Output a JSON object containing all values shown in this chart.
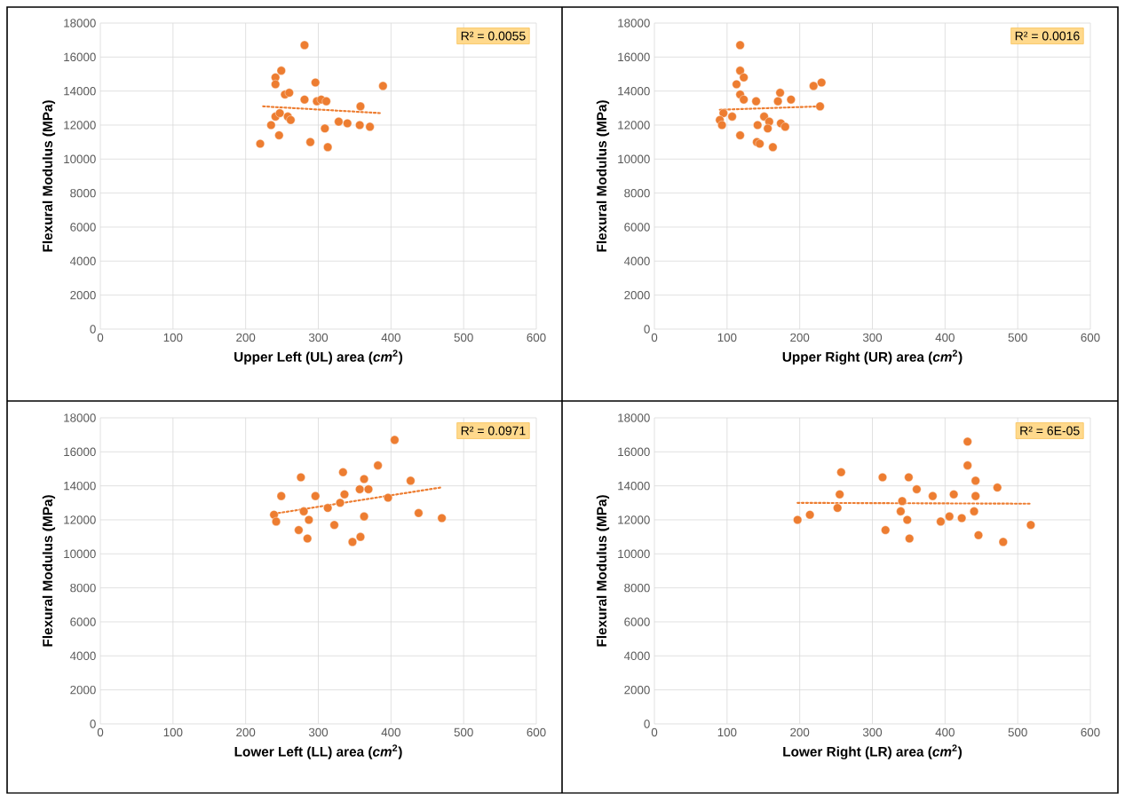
{
  "chart_data": [
    {
      "type": "scatter",
      "xlabel": "Upper Left (UL) area (*cm*$^{2}$)",
      "ylabel": "Flexural Modulus (MPa)",
      "xlim": [
        0,
        600
      ],
      "ylim": [
        0,
        18000
      ],
      "xticks": [
        0,
        100,
        200,
        300,
        400,
        500,
        600
      ],
      "yticks": [
        0,
        2000,
        4000,
        6000,
        8000,
        10000,
        12000,
        14000,
        16000,
        18000
      ],
      "grid": true,
      "annotations": [
        "R² = 0.0055"
      ],
      "series": [
        {
          "type": "scatter",
          "marker": "circle",
          "color": "#ed7d31",
          "x": [
            281,
            249,
            241,
            241,
            296,
            389,
            254,
            260,
            281,
            298,
            304,
            311,
            358,
            241,
            247,
            258,
            262,
            235,
            328,
            340,
            357,
            371,
            309,
            246,
            220,
            289,
            313
          ],
          "values": [
            16700,
            15200,
            14800,
            14400,
            14500,
            14300,
            13800,
            13900,
            13500,
            13400,
            13500,
            13400,
            13100,
            12500,
            12700,
            12500,
            12300,
            12000,
            12200,
            12100,
            12000,
            11900,
            11800,
            11400,
            10900,
            11000,
            10700
          ]
        },
        {
          "type": "line",
          "line_style": "dotted",
          "color": "#ed7d31",
          "x": [
            224,
            387
          ],
          "values": [
            13100,
            12700
          ]
        }
      ]
    },
    {
      "type": "scatter",
      "xlabel": "Upper Right (UR) area (*cm*$^{2}$)",
      "ylabel": "Flexural Modulus (MPa)",
      "xlim": [
        0,
        600
      ],
      "ylim": [
        0,
        18000
      ],
      "xticks": [
        0,
        100,
        200,
        300,
        400,
        500,
        600
      ],
      "yticks": [
        0,
        2000,
        4000,
        6000,
        8000,
        10000,
        12000,
        14000,
        16000,
        18000
      ],
      "grid": true,
      "annotations": [
        "R² = 0.0016"
      ],
      "series": [
        {
          "type": "scatter",
          "marker": "circle",
          "color": "#ed7d31",
          "x": [
            118,
            118,
            123,
            113,
            219,
            230,
            118,
            123,
            140,
            173,
            170,
            188,
            228,
            95,
            90,
            93,
            107,
            151,
            158,
            142,
            174,
            180,
            156,
            118,
            141,
            145,
            163
          ],
          "values": [
            16700,
            15200,
            14800,
            14400,
            14300,
            14500,
            13800,
            13500,
            13400,
            13900,
            13400,
            13500,
            13100,
            12700,
            12300,
            12000,
            12500,
            12500,
            12200,
            12000,
            12100,
            11900,
            11800,
            11400,
            11000,
            10900,
            10700
          ]
        },
        {
          "type": "line",
          "line_style": "dotted",
          "color": "#ed7d31",
          "x": [
            90,
            228
          ],
          "values": [
            12900,
            13100
          ]
        }
      ]
    },
    {
      "type": "scatter",
      "xlabel": "Lower Left (LL) area (*cm*$^{2}$)",
      "ylabel": "Flexural Modulus (MPa)",
      "xlim": [
        0,
        600
      ],
      "ylim": [
        0,
        18000
      ],
      "xticks": [
        0,
        100,
        200,
        300,
        400,
        500,
        600
      ],
      "yticks": [
        0,
        2000,
        4000,
        6000,
        8000,
        10000,
        12000,
        14000,
        16000,
        18000
      ],
      "grid": true,
      "annotations": [
        "R² = 0.0971"
      ],
      "series": [
        {
          "type": "scatter",
          "marker": "circle",
          "color": "#ed7d31",
          "x": [
            405,
            382,
            334,
            276,
            363,
            427,
            357,
            369,
            249,
            296,
            336,
            396,
            330,
            313,
            280,
            239,
            242,
            287,
            363,
            438,
            470,
            322,
            273,
            285,
            358,
            347
          ],
          "values": [
            16700,
            15200,
            14800,
            14500,
            14400,
            14300,
            13800,
            13800,
            13400,
            13400,
            13500,
            13300,
            13000,
            12700,
            12500,
            12300,
            11900,
            12000,
            12200,
            12400,
            12100,
            11700,
            11400,
            10900,
            11000,
            10700
          ]
        },
        {
          "type": "line",
          "line_style": "dotted",
          "color": "#ed7d31",
          "x": [
            245,
            468
          ],
          "values": [
            12400,
            13900
          ]
        }
      ]
    },
    {
      "type": "scatter",
      "xlabel": "Lower Right (LR) area (*cm*$^{2}$)",
      "ylabel": "Flexural Modulus (MPa)",
      "xlim": [
        0,
        600
      ],
      "ylim": [
        0,
        18000
      ],
      "xticks": [
        0,
        100,
        200,
        300,
        400,
        500,
        600
      ],
      "yticks": [
        0,
        2000,
        4000,
        6000,
        8000,
        10000,
        12000,
        14000,
        16000,
        18000
      ],
      "grid": true,
      "annotations": [
        "R² = 6E-05"
      ],
      "series": [
        {
          "type": "scatter",
          "marker": "circle",
          "color": "#ed7d31",
          "x": [
            197,
            214,
            257,
            255,
            252,
            314,
            318,
            361,
            350,
            341,
            339,
            348,
            351,
            383,
            394,
            412,
            406,
            423,
            431,
            431,
            442,
            442,
            440,
            446,
            472,
            480,
            518
          ],
          "values": [
            12000,
            12300,
            14800,
            13500,
            12700,
            14500,
            11400,
            13800,
            14500,
            13100,
            12500,
            12000,
            10900,
            13400,
            11900,
            13500,
            12200,
            12100,
            16600,
            15200,
            14300,
            13400,
            12500,
            11100,
            13900,
            10700,
            11700
          ]
        },
        {
          "type": "line",
          "line_style": "dotted",
          "color": "#ed7d31",
          "x": [
            197,
            518
          ],
          "values": [
            13000,
            12950
          ]
        }
      ]
    }
  ]
}
